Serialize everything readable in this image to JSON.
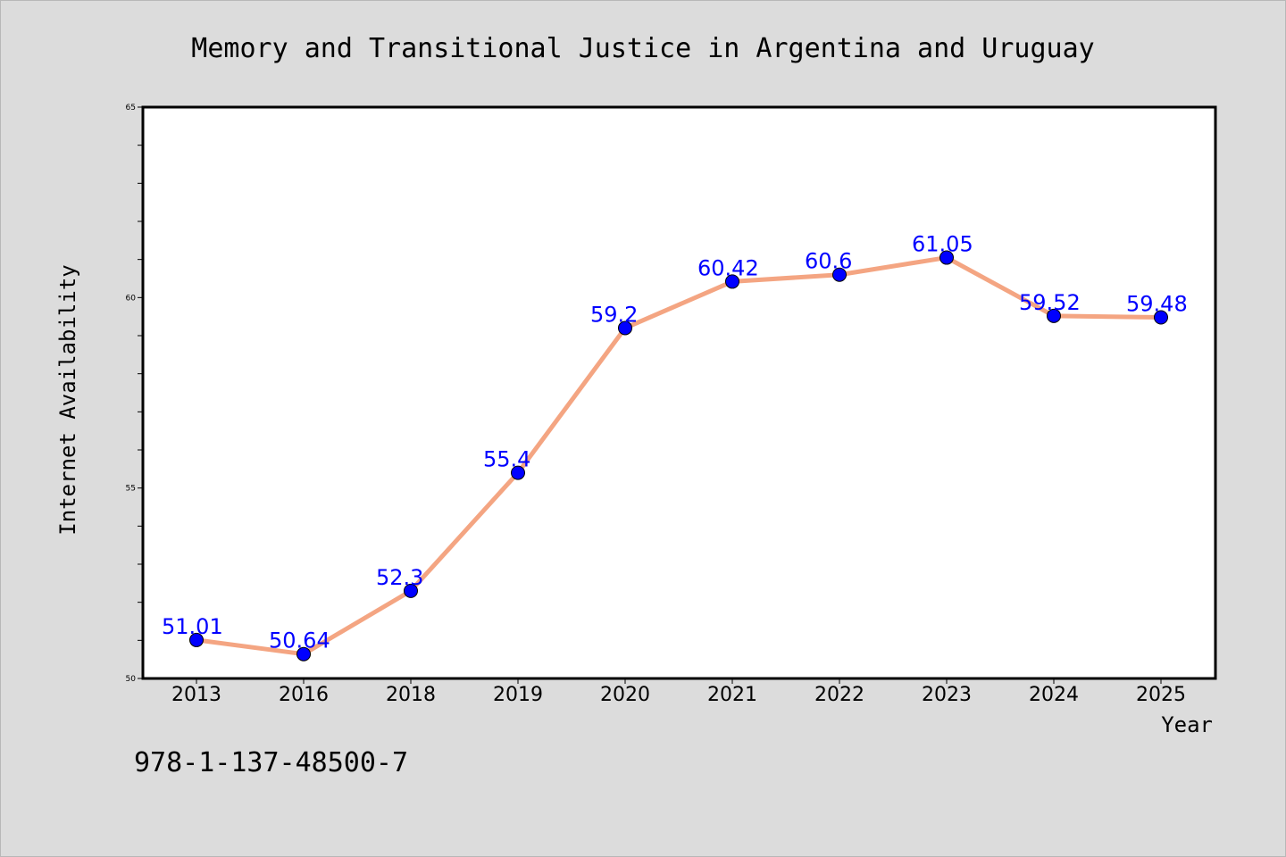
{
  "chart_data": {
    "type": "line",
    "title": "Memory and Transitional Justice in Argentina and Uruguay",
    "xlabel": "Year",
    "ylabel": "Internet Availability",
    "categories": [
      "2013",
      "2016",
      "2018",
      "2019",
      "2020",
      "2021",
      "2022",
      "2023",
      "2024",
      "2025"
    ],
    "values": [
      51.01,
      50.64,
      52.3,
      55.4,
      59.2,
      60.42,
      60.6,
      61.05,
      59.52,
      59.48
    ],
    "data_labels": [
      "51.01",
      "50.64",
      "52.3",
      "55.4",
      "59.2",
      "60.42",
      "60.6",
      "61.05",
      "59.52",
      "59.48"
    ],
    "ylim": [
      50,
      65
    ],
    "yticks": [
      "50",
      "55",
      "60",
      "65"
    ],
    "grid": false,
    "legend": "none",
    "line_color": "#f4a582",
    "marker_color": "#0000ff",
    "label_color": "#0000ff"
  },
  "footnote": "978-1-137-48500-7",
  "colors": {
    "background": "#dcdcdc",
    "plot_background": "#ffffff"
  }
}
